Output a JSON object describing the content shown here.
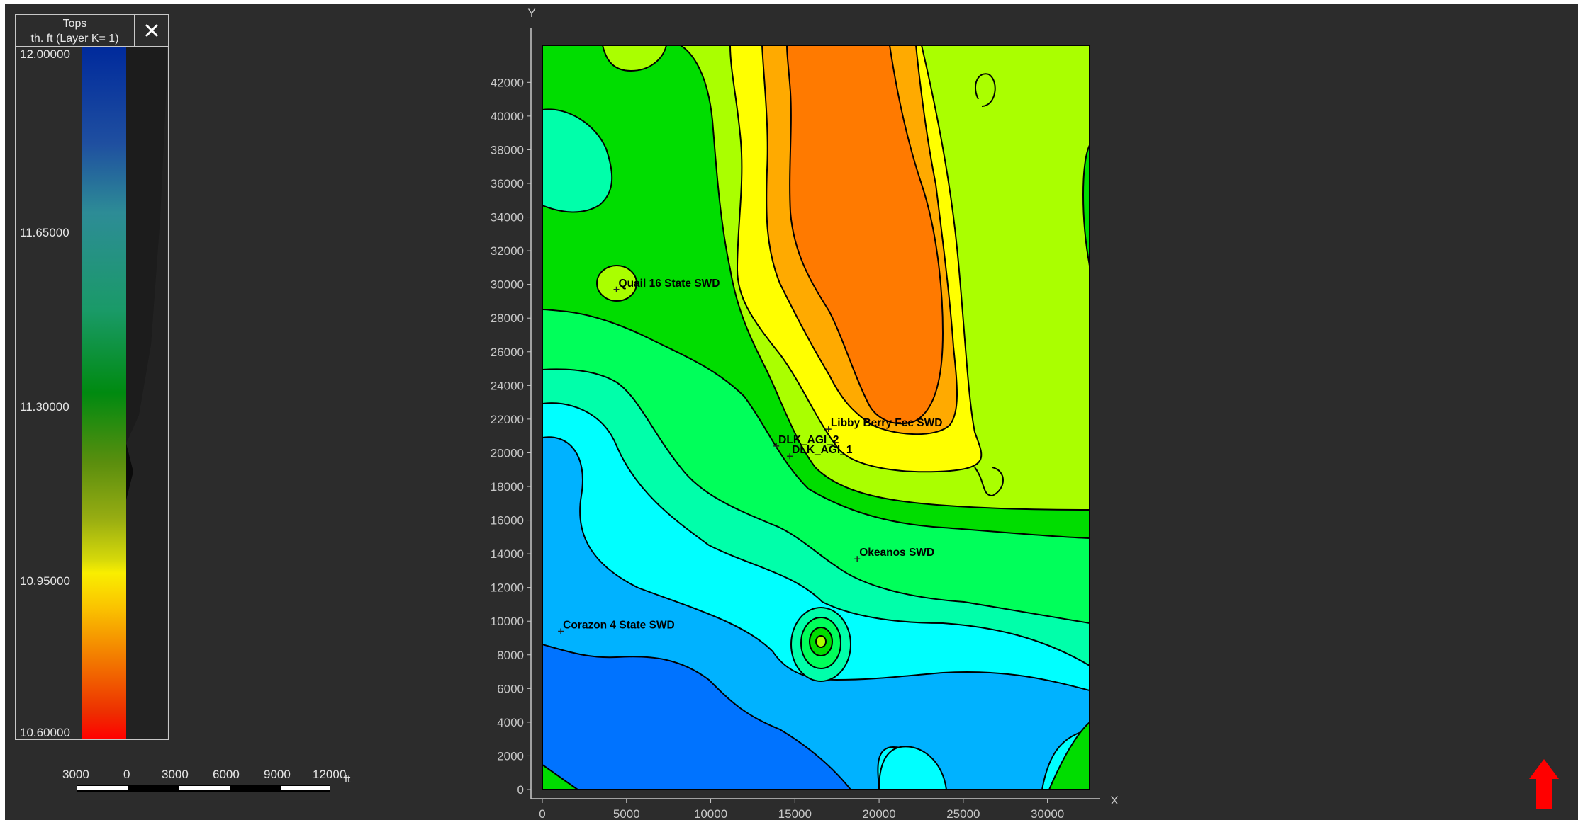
{
  "legend": {
    "title_line1": "Tops",
    "title_line2": "th. ft (Layer K= 1)",
    "close_label": "close",
    "ticks": [
      "12.00000",
      "11.65000",
      "11.30000",
      "10.95000",
      "10.60000"
    ]
  },
  "scale_bar": {
    "labels": [
      "3000",
      "0",
      "3000",
      "6000",
      "9000",
      "12000"
    ],
    "unit": "ft"
  },
  "map": {
    "x_axis_label": "X",
    "y_axis_label": "Y",
    "x_ticks": [
      "0",
      "5000",
      "10000",
      "15000",
      "20000",
      "25000",
      "30000"
    ],
    "y_ticks": [
      "0",
      "2000",
      "4000",
      "6000",
      "8000",
      "10000",
      "12000",
      "14000",
      "16000",
      "18000",
      "20000",
      "22000",
      "24000",
      "26000",
      "28000",
      "30000",
      "32000",
      "34000",
      "36000",
      "38000",
      "40000",
      "42000"
    ],
    "wells": [
      {
        "name": "Quail 16 State SWD",
        "x": 4400,
        "y": 29700
      },
      {
        "name": "Libby Berry Fee SWD",
        "x": 17000,
        "y": 21400
      },
      {
        "name": "DLK_AGI_2",
        "x": 13900,
        "y": 20400
      },
      {
        "name": "DLK_AGI_1",
        "x": 14700,
        "y": 19800
      },
      {
        "name": "Okeanos SWD",
        "x": 18700,
        "y": 13700
      },
      {
        "name": "Corazon 4 State SWD",
        "x": 1100,
        "y": 9400
      }
    ],
    "colors": {
      "background": "#2c2c2c",
      "orange": "#ff7a00",
      "light_orange": "#ffaa00",
      "yellow": "#ffff00",
      "yellow_green": "#aaff00",
      "green": "#00dd00",
      "green2": "#00ff5a",
      "mint": "#00ffaa",
      "cyan": "#00ffff",
      "sky": "#00b2ff",
      "blue": "#0073ff"
    }
  },
  "north_arrow": {
    "color": "#ff0000"
  }
}
